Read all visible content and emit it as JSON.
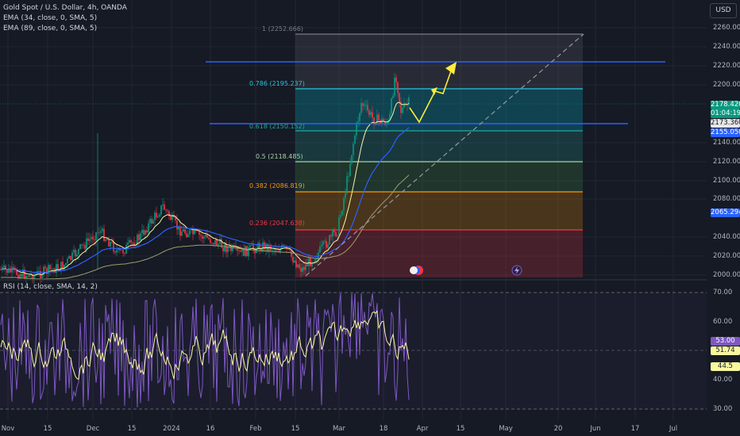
{
  "header": {
    "symbol_line": "Gold Spot / U.S. Dollar, 4h, OANDA",
    "ema1_line": "EMA (34, close, 0, SMA, 5)",
    "ema2_line": "EMA (89, close, 0, SMA, 5)",
    "rsi_line": "RSI (14, close, SMA, 14, 2)",
    "currency_button": "USD"
  },
  "price_axis": {
    "labels": [
      "2260.000",
      "2240.000",
      "2220.000",
      "2200.000",
      "2140.000",
      "2120.000",
      "2100.000",
      "2080.000",
      "2040.000",
      "2020.000",
      "2000.000"
    ],
    "tags": [
      {
        "text": "2178.420",
        "color": "#089981"
      },
      {
        "text": "01:04:19",
        "color": "#089981"
      },
      {
        "text": "2173.360",
        "color": "#e6e6e6",
        "text_color": "#131722"
      },
      {
        "text": "2155.050",
        "color": "#2962ff"
      },
      {
        "text": "2065.294",
        "color": "#2962ff"
      }
    ]
  },
  "rsi_axis": {
    "labels": [
      "70.00",
      "60.00",
      "40.00",
      "30.00"
    ],
    "tags": [
      {
        "text": "53.00",
        "color": "#7e57c2"
      },
      {
        "text": "51.74",
        "color": "#f7f7a0",
        "text_color": "#131722"
      },
      {
        "text": "44.5",
        "color": "#f7f7a0",
        "text_color": "#131722"
      }
    ]
  },
  "time_axis": {
    "labels": [
      "Nov",
      "15",
      "Dec",
      "15",
      "2024",
      "16",
      "Feb",
      "15",
      "Mar",
      "18",
      "Apr",
      "15",
      "May",
      "20",
      "Jun",
      "17",
      "Jul"
    ]
  },
  "fibonacci": {
    "levels": [
      {
        "label": "1 (2252.666)",
        "color": "#787b86"
      },
      {
        "label": "0.786 (2195.237)",
        "color": "#26c6da"
      },
      {
        "label": "0.618 (2150.152)",
        "color": "#26a69a"
      },
      {
        "label": "0.5 (2118.485)",
        "color": "#a5d6a7"
      },
      {
        "label": "0.382 (2086.819)",
        "color": "#ff9800"
      },
      {
        "label": "0.236 (2047.638)",
        "color": "#f23645"
      }
    ]
  },
  "colors": {
    "background": "#161a25",
    "up": "#089981",
    "down": "#f23645",
    "ema34": "#f7f7a0",
    "ema89": "#2962ff",
    "rsi": "#7e57c2",
    "horizontal_line": "#2962ff",
    "arrow": "#ffeb3b"
  },
  "icons": [
    "currency-icon",
    "lightning-icon"
  ]
}
